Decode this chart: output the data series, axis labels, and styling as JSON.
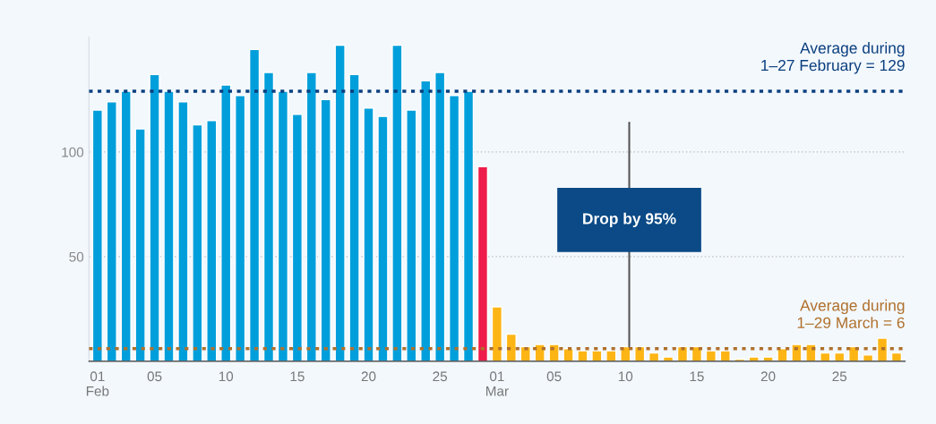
{
  "chart_data": {
    "type": "bar",
    "categories": [
      "01\nFeb",
      null,
      null,
      null,
      "05",
      null,
      null,
      null,
      null,
      "10",
      null,
      null,
      null,
      null,
      "15",
      null,
      null,
      null,
      null,
      "20",
      null,
      null,
      null,
      null,
      "25",
      null,
      null,
      null,
      "01\nMar",
      null,
      null,
      null,
      "05",
      null,
      null,
      null,
      null,
      "10",
      null,
      null,
      null,
      null,
      "15",
      null,
      null,
      null,
      null,
      "20",
      null,
      null,
      null,
      null,
      "25",
      null,
      null,
      null,
      null
    ],
    "values": [
      120,
      124,
      129,
      111,
      137,
      129,
      124,
      113,
      115,
      132,
      127,
      149,
      138,
      129,
      118,
      138,
      125,
      151,
      137,
      121,
      117,
      151,
      120,
      134,
      138,
      127,
      129,
      93,
      26,
      13,
      7,
      8,
      8,
      6,
      5,
      5,
      5,
      7,
      7,
      4,
      2,
      7,
      7,
      5,
      5,
      1,
      2,
      2,
      6,
      8,
      8,
      4,
      4,
      7,
      3,
      11,
      4
    ],
    "colors": [
      "#009fdb",
      "#009fdb",
      "#009fdb",
      "#009fdb",
      "#009fdb",
      "#009fdb",
      "#009fdb",
      "#009fdb",
      "#009fdb",
      "#009fdb",
      "#009fdb",
      "#009fdb",
      "#009fdb",
      "#009fdb",
      "#009fdb",
      "#009fdb",
      "#009fdb",
      "#009fdb",
      "#009fdb",
      "#009fdb",
      "#009fdb",
      "#009fdb",
      "#009fdb",
      "#009fdb",
      "#009fdb",
      "#009fdb",
      "#009fdb",
      "#ee1c4b",
      "#fdb515",
      "#fdb515",
      "#fdb515",
      "#fdb515",
      "#fdb515",
      "#fdb515",
      "#fdb515",
      "#fdb515",
      "#fdb515",
      "#fdb515",
      "#fdb515",
      "#fdb515",
      "#fdb515",
      "#fdb515",
      "#fdb515",
      "#fdb515",
      "#fdb515",
      "#fdb515",
      "#fdb515",
      "#fdb515",
      "#fdb515",
      "#fdb515",
      "#fdb515",
      "#fdb515",
      "#fdb515",
      "#fdb515",
      "#fdb515",
      "#fdb515",
      "#fdb515"
    ],
    "ylim": [
      0,
      155
    ],
    "yticks": [
      50,
      100
    ],
    "grid": "y",
    "ref_lines": [
      {
        "axis": "y",
        "value": 129,
        "label": "Average during\n1–27 February = 129",
        "color": "#0b3f7f",
        "line_style": "dotted"
      },
      {
        "axis": "y",
        "value": 6,
        "label": "Average during\n1–29 March = 6",
        "color": "#b0702c",
        "line_style": "dotted"
      }
    ],
    "annotations": [
      "Drop by 95%"
    ]
  }
}
